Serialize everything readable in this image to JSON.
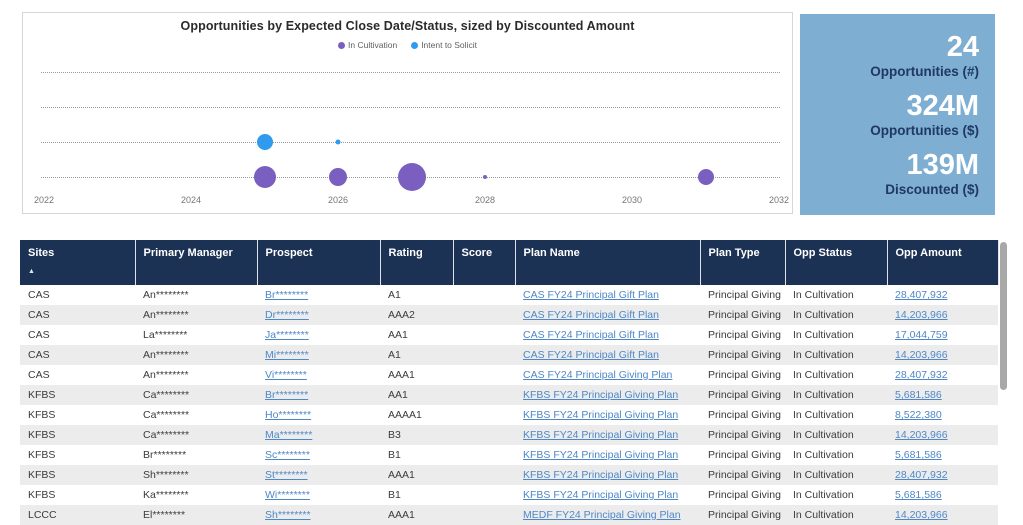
{
  "chart_data": {
    "type": "scatter",
    "title": "Opportunities by Expected Close Date/Status, sized by Discounted Amount",
    "legend": [
      "In Cultivation",
      "Intent to Solicit"
    ],
    "colors": {
      "In Cultivation": "#7b5fc0",
      "Intent to Solicit": "#2e9bf0"
    },
    "x_ticks": [
      "2022",
      "2024",
      "2026",
      "2028",
      "2030",
      "2032"
    ],
    "x_range": [
      2022,
      2032
    ],
    "grid_rows": 4,
    "legend_position": "top",
    "bubbles": [
      {
        "year": 2025,
        "row": 2,
        "diameter": 16,
        "status": "Intent to Solicit"
      },
      {
        "year": 2026,
        "row": 2,
        "diameter": 5,
        "status": "Intent to Solicit"
      },
      {
        "year": 2025,
        "row": 3,
        "diameter": 22,
        "status": "In Cultivation"
      },
      {
        "year": 2026,
        "row": 3,
        "diameter": 18,
        "status": "In Cultivation"
      },
      {
        "year": 2027,
        "row": 3,
        "diameter": 28,
        "status": "In Cultivation"
      },
      {
        "year": 2028,
        "row": 3,
        "diameter": 4,
        "status": "In Cultivation"
      },
      {
        "year": 2031,
        "row": 3,
        "diameter": 16,
        "status": "In Cultivation"
      }
    ]
  },
  "kpis": [
    {
      "value": "24",
      "label": "Opportunities (#)"
    },
    {
      "value": "324M",
      "label": "Opportunities ($)"
    },
    {
      "value": "139M",
      "label": "Discounted ($)"
    }
  ],
  "table": {
    "headers": [
      "Sites",
      "Primary Manager",
      "Prospect",
      "Rating",
      "Score",
      "Plan Name",
      "Plan Type",
      "Opp Status",
      "Opp Amount"
    ],
    "sort_column": "Sites",
    "sort_icon": "▲",
    "link_columns": [
      2,
      5,
      8
    ],
    "rows": [
      [
        "CAS",
        "An********",
        "Br********",
        "A1",
        "",
        "CAS FY24 Principal Gift Plan",
        "Principal Giving",
        "In Cultivation",
        "28,407,932"
      ],
      [
        "CAS",
        "An********",
        "Dr********",
        "AAA2",
        "",
        "CAS FY24 Principal Gift Plan",
        "Principal Giving",
        "In Cultivation",
        "14,203,966"
      ],
      [
        "CAS",
        "La********",
        "Ja********",
        "AA1",
        "",
        "CAS FY24 Principal Gift Plan",
        "Principal Giving",
        "In Cultivation",
        "17,044,759"
      ],
      [
        "CAS",
        "An********",
        "Mi********",
        "A1",
        "",
        "CAS FY24 Principal Gift Plan",
        "Principal Giving",
        "In Cultivation",
        "14,203,966"
      ],
      [
        "CAS",
        "An********",
        "Vi********",
        "AAA1",
        "",
        "CAS FY24 Principal Giving Plan",
        "Principal Giving",
        "In Cultivation",
        "28,407,932"
      ],
      [
        "KFBS",
        "Ca********",
        "Br********",
        "AA1",
        "",
        "KFBS FY24 Principal Giving Plan",
        "Principal Giving",
        "In Cultivation",
        "5,681,586"
      ],
      [
        "KFBS",
        "Ca********",
        "Ho********",
        "AAAA1",
        "",
        "KFBS FY24 Principal Giving Plan",
        "Principal Giving",
        "In Cultivation",
        "8,522,380"
      ],
      [
        "KFBS",
        "Ca********",
        "Ma********",
        "B3",
        "",
        "KFBS FY24 Principal Giving Plan",
        "Principal Giving",
        "In Cultivation",
        "14,203,966"
      ],
      [
        "KFBS",
        "Br********",
        "Sc********",
        "B1",
        "",
        "KFBS FY24 Principal Giving Plan",
        "Principal Giving",
        "In Cultivation",
        "5,681,586"
      ],
      [
        "KFBS",
        "Sh********",
        "St********",
        "AAA1",
        "",
        "KFBS FY24 Principal Giving Plan",
        "Principal Giving",
        "In Cultivation",
        "28,407,932"
      ],
      [
        "KFBS",
        "Ka********",
        "Wi********",
        "B1",
        "",
        "KFBS FY24 Principal Giving Plan",
        "Principal Giving",
        "In Cultivation",
        "5,681,586"
      ],
      [
        "LCCC",
        "El********",
        "Sh********",
        "AAA1",
        "",
        "MEDF FY24 Principal Giving Plan",
        "Principal Giving",
        "In Cultivation",
        "14,203,966"
      ]
    ]
  },
  "colors": {
    "table_header_bg": "#1c3254",
    "kpi_card_bg": "#7faed3",
    "kpi_value": "#ffffff",
    "kpi_label": "#1f3864",
    "link": "#4e87c7",
    "row_alt": "#ececec"
  }
}
